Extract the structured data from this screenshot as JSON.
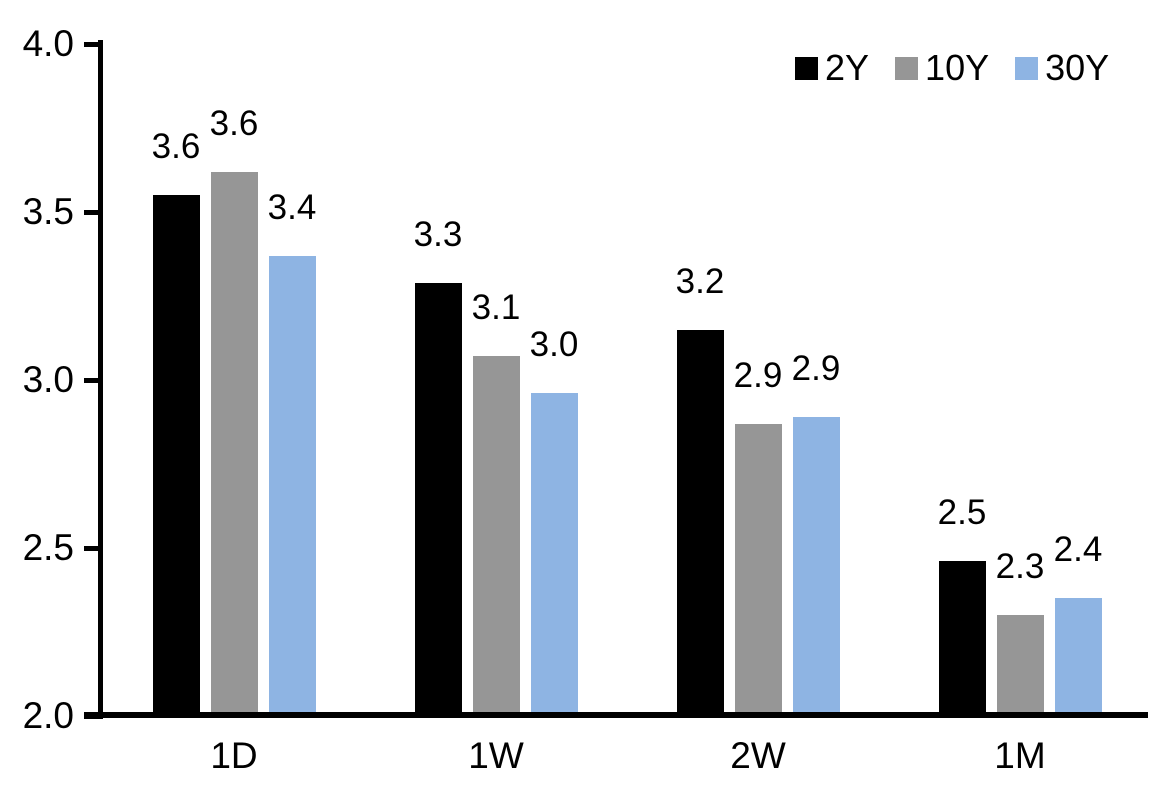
{
  "chart_data": {
    "type": "bar",
    "title": "",
    "categories": [
      "1D",
      "1W",
      "2W",
      "1M"
    ],
    "series": [
      {
        "name": "2Y",
        "color": "#000000",
        "values": [
          3.55,
          3.29,
          3.15,
          2.46
        ],
        "labels": [
          "3.6",
          "3.3",
          "3.2",
          "2.5"
        ]
      },
      {
        "name": "10Y",
        "color": "#969696",
        "values": [
          3.62,
          3.07,
          2.87,
          2.3
        ],
        "labels": [
          "3.6",
          "3.1",
          "2.9",
          "2.3"
        ]
      },
      {
        "name": "30Y",
        "color": "#8EB4E3",
        "values": [
          3.37,
          2.96,
          2.89,
          2.35
        ],
        "labels": [
          "3.4",
          "3.0",
          "2.9",
          "2.4"
        ]
      }
    ],
    "ylim": [
      2.0,
      4.0
    ],
    "yticks": [
      {
        "value": 4.0,
        "label": "4.0"
      },
      {
        "value": 3.5,
        "label": "3.5"
      },
      {
        "value": 3.0,
        "label": "3.0"
      },
      {
        "value": 2.5,
        "label": "2.5"
      },
      {
        "value": 2.0,
        "label": "2.0"
      }
    ],
    "legend_position": "top-right",
    "grid": false,
    "axis_color": "#000000",
    "background": "#FFFFFF",
    "data_labels_shown": true
  }
}
